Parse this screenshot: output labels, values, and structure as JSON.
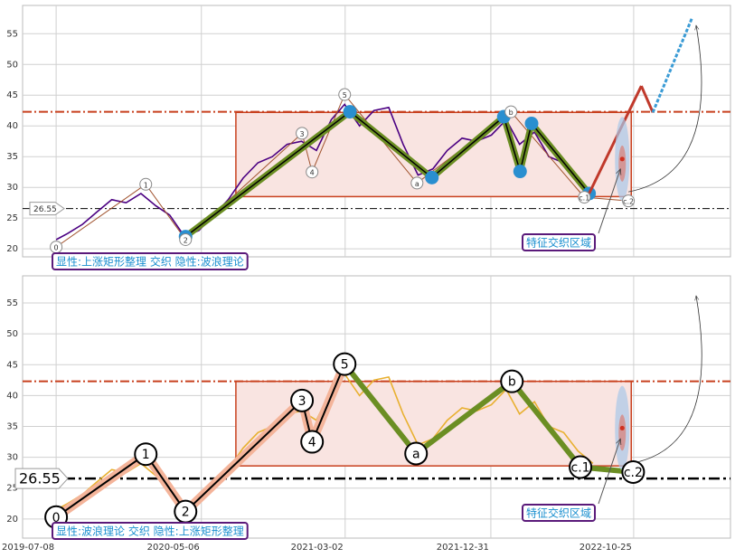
{
  "chart_data": {
    "type": "line",
    "x": [
      "2019-07-08",
      "2019-08-01",
      "2019-09-01",
      "2019-10-01",
      "2019-11-01",
      "2019-12-01",
      "2020-01-01",
      "2020-02-01",
      "2020-03-01",
      "2020-04-01",
      "2020-05-01",
      "2020-06-01",
      "2020-07-01",
      "2020-08-01",
      "2020-09-01",
      "2020-10-01",
      "2020-11-01",
      "2020-12-01",
      "2021-01-01",
      "2021-02-01",
      "2021-03-01",
      "2021-04-01",
      "2021-05-01",
      "2021-06-01",
      "2021-07-01",
      "2021-08-01",
      "2021-09-01",
      "2021-10-01",
      "2021-11-01",
      "2021-12-01",
      "2022-01-01",
      "2022-02-01",
      "2022-03-01",
      "2022-04-01",
      "2022-05-01",
      "2022-06-01",
      "2022-07-01",
      "2022-08-01"
    ],
    "values": [
      21.5,
      22.5,
      24,
      26,
      28,
      27.5,
      29,
      27,
      25.5,
      22,
      23,
      25.5,
      28,
      31.5,
      34,
      35,
      37,
      37.5,
      36,
      41,
      43.5,
      40,
      42.5,
      43,
      37,
      32,
      33,
      36,
      38,
      37.5,
      38.5,
      41,
      37,
      39,
      35,
      34,
      31,
      29
    ],
    "xlim": [
      "2019-04-29",
      "2023-05-15"
    ],
    "xticks": [
      "2019-07-08",
      "2020-05-06",
      "2021-03-02",
      "2021-12-31",
      "2022-10-25"
    ],
    "panels": [
      {
        "color": "#4b0082",
        "wave_style": "small",
        "ylim": [
          18.7,
          59.6
        ],
        "yticks": [
          20,
          25,
          30,
          35,
          40,
          45,
          50,
          55
        ],
        "level": 26.55,
        "resistance": 42.3,
        "zone": {
          "x": [
            "2020-07-17",
            "2022-10-20"
          ],
          "values": [
            28.5,
            42.2
          ]
        },
        "waves": {
          "labels": [
            "0",
            "1",
            "2",
            "3",
            "4",
            "5",
            "a",
            "b",
            "c.1",
            "c.2"
          ],
          "x": [
            "2019-07-08",
            "2020-01-11",
            "2020-04-03",
            "2020-12-02",
            "2020-12-23",
            "2021-03-01",
            "2021-07-30",
            "2022-02-11",
            "2022-07-14",
            "2022-10-14"
          ],
          "values": [
            20.3,
            30.5,
            21.5,
            38.8,
            32.5,
            45.1,
            30.7,
            42.3,
            28.4,
            27.8
          ]
        },
        "trend": {
          "x": [
            "2020-04-03",
            "2021-03-12",
            "2021-08-30",
            "2022-01-27",
            "2022-03-02",
            "2022-03-26",
            "2022-07-24"
          ],
          "values": [
            22,
            42.3,
            31.6,
            41.5,
            32.6,
            40.4,
            29
          ]
        },
        "projection": {
          "x": [
            "2022-07-24",
            "2022-11-10",
            "2022-12-04",
            "2023-02-24"
          ],
          "values": [
            29,
            46.5,
            42.2,
            57.6
          ]
        },
        "pattern": "显性:上涨矩形整理 交织 隐性:波浪理论",
        "zone_label": "特征交织区域"
      },
      {
        "color": "#e8b030",
        "wave_style": "large",
        "ylim": [
          16.9,
          59.4
        ],
        "yticks": [
          20,
          25,
          30,
          35,
          40,
          45,
          50,
          55
        ],
        "level": 26.55,
        "resistance": 42.3,
        "zone": {
          "x": [
            "2020-07-17",
            "2022-10-20"
          ],
          "values": [
            28.6,
            42.3
          ]
        },
        "waves": {
          "labels": [
            "0",
            "1",
            "2",
            "3",
            "4",
            "5",
            "a",
            "b",
            "c.1",
            "c.2"
          ],
          "x": [
            "2019-07-08",
            "2020-01-11",
            "2020-04-03",
            "2020-12-02",
            "2020-12-23",
            "2021-03-01",
            "2021-07-28",
            "2022-02-13",
            "2022-07-06",
            "2022-10-24"
          ],
          "values": [
            20.3,
            30.5,
            21.2,
            39.2,
            32.5,
            45.1,
            30.6,
            42.3,
            28.4,
            27.6
          ]
        },
        "pattern": "显性:波浪理论 交织 隐性:上涨矩形整理",
        "zone_label": "特征交织区域"
      }
    ]
  }
}
